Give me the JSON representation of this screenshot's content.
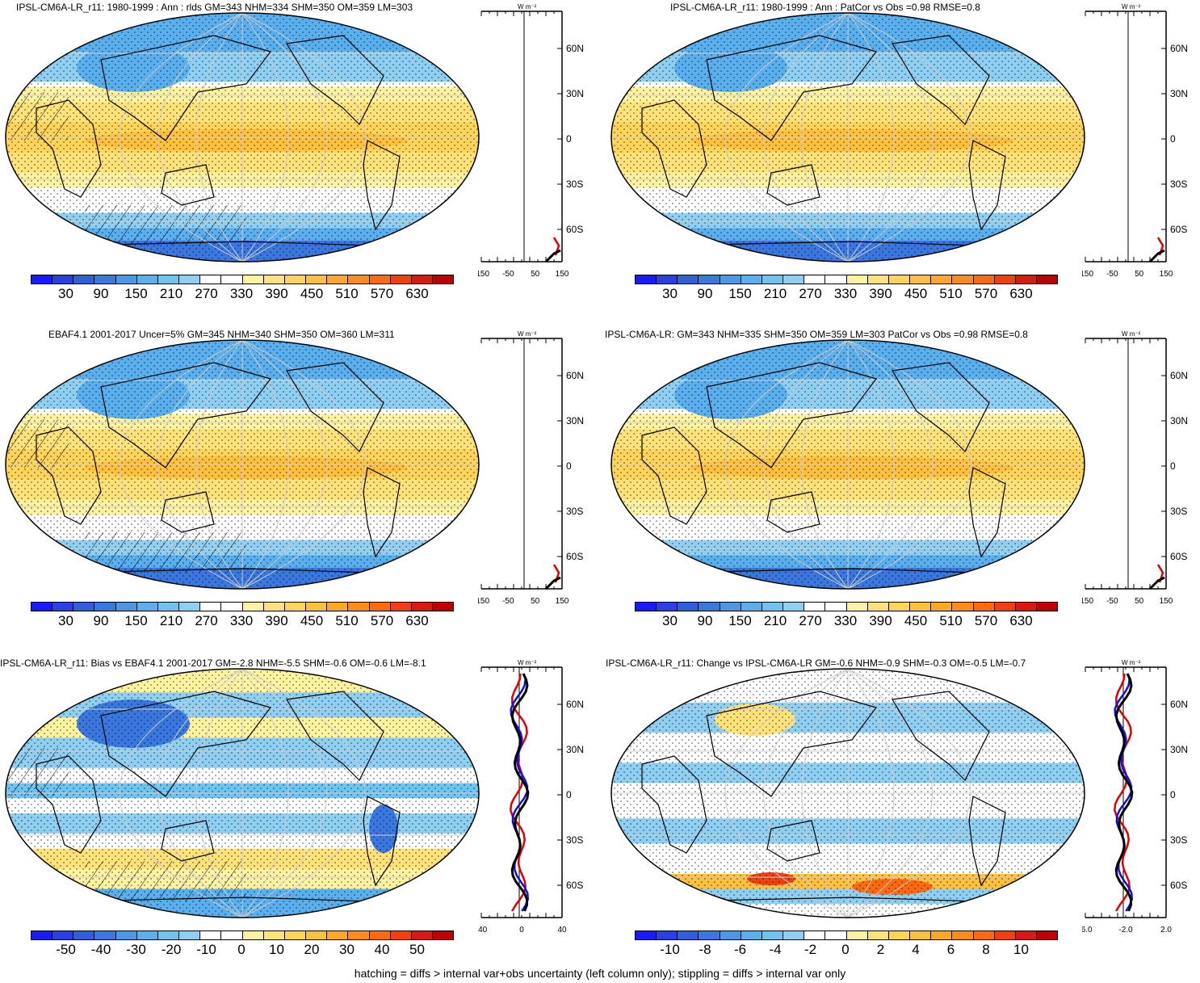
{
  "panels": [
    {
      "title": "IPSL-CM6A-LR_r11: 1980-1999 : Ann : rlds GM=343 NHM=334 SHM=350 OM=359 LM=303",
      "colorbar_labels": [
        "30",
        "90",
        "150",
        "210",
        "270",
        "330",
        "390",
        "450",
        "510",
        "570",
        "630"
      ],
      "profile_xticks": [
        "-150",
        "-50",
        "50",
        "150"
      ],
      "profile_unit": "W m⁻²",
      "profile_lat_labels": [
        "60N",
        "30N",
        "0",
        "30S",
        "60S"
      ],
      "hatching": true,
      "kind": "abs"
    },
    {
      "title": "IPSL-CM6A-LR_r11: 1980-1999 : Ann : PatCor vs Obs =0.98 RMSE=0.8",
      "colorbar_labels": [
        "30",
        "90",
        "150",
        "210",
        "270",
        "330",
        "390",
        "450",
        "510",
        "570",
        "630"
      ],
      "profile_xticks": [
        "-150",
        "-50",
        "50",
        "150"
      ],
      "profile_unit": "W m⁻²",
      "profile_lat_labels": [
        "60N",
        "30N",
        "0",
        "30S",
        "60S"
      ],
      "hatching": false,
      "kind": "abs"
    },
    {
      "title": "EBAF4.1 2001-2017 Uncer=5% GM=345 NHM=340 SHM=350 OM=360 LM=311",
      "colorbar_labels": [
        "30",
        "90",
        "150",
        "210",
        "270",
        "330",
        "390",
        "450",
        "510",
        "570",
        "630"
      ],
      "profile_xticks": [
        "-150",
        "-50",
        "50",
        "150"
      ],
      "profile_unit": "W m⁻²",
      "profile_lat_labels": [
        "60N",
        "30N",
        "0",
        "30S",
        "60S"
      ],
      "hatching": true,
      "kind": "abs"
    },
    {
      "title": "IPSL-CM6A-LR: GM=343 NHM=335 SHM=350 OM=359 LM=303 PatCor vs Obs =0.98 RMSE=0.8",
      "colorbar_labels": [
        "30",
        "90",
        "150",
        "210",
        "270",
        "330",
        "390",
        "450",
        "510",
        "570",
        "630"
      ],
      "profile_xticks": [
        "-150",
        "-50",
        "50",
        "150"
      ],
      "profile_unit": "W m⁻²",
      "profile_lat_labels": [
        "60N",
        "30N",
        "0",
        "30S",
        "60S"
      ],
      "hatching": false,
      "kind": "abs"
    },
    {
      "title": "IPSL-CM6A-LR_r11: Bias vs EBAF4.1 2001-2017 GM=-2.8 NHM=-5.5 SHM=-0.6 OM=-0.6 LM=-8.1",
      "colorbar_labels": [
        "-50",
        "-40",
        "-30",
        "-20",
        "-10",
        "0",
        "10",
        "20",
        "30",
        "40",
        "50"
      ],
      "profile_xticks": [
        "-40",
        "0",
        "40"
      ],
      "profile_unit": "W m⁻²",
      "profile_lat_labels": [
        "60N",
        "30N",
        "0",
        "30S",
        "60S"
      ],
      "hatching": true,
      "kind": "bias"
    },
    {
      "title": "IPSL-CM6A-LR_r11: Change vs IPSL-CM6A-LR GM=-0.6 NHM=-0.9 SHM=-0.3 OM=-0.5 LM=-0.7",
      "colorbar_labels": [
        "-10",
        "-8",
        "-6",
        "-4",
        "-2",
        "0",
        "2",
        "4",
        "6",
        "8",
        "10"
      ],
      "profile_xticks": [
        "-6.0",
        "-2.0",
        "2.0"
      ],
      "profile_unit": "W m⁻²",
      "profile_lat_labels": [
        "60N",
        "30N",
        "0",
        "30S",
        "60S"
      ],
      "hatching": false,
      "kind": "change"
    }
  ],
  "palette": [
    "#1a1aff",
    "#2a40e0",
    "#3060d8",
    "#3a78e0",
    "#4a98e8",
    "#5ab0ee",
    "#6ec3f0",
    "#8fd0f2",
    "#ffffff",
    "#ffffff",
    "#fff3a0",
    "#ffe27a",
    "#ffd45a",
    "#ffc040",
    "#ffa828",
    "#ff8c1a",
    "#ff6a10",
    "#f04010",
    "#d81a10",
    "#c00000"
  ],
  "footer": "hatching = diffs > internal var+obs uncertainty (left column only); stippling = diffs > internal var only"
}
